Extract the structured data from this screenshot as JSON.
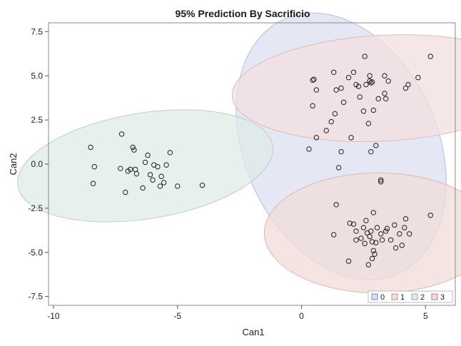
{
  "chart_data": {
    "type": "scatter",
    "title": "95% Prediction By Sacrificio",
    "xlabel": "Can1",
    "ylabel": "Can2",
    "xlim": [
      -10.2,
      6.2
    ],
    "ylim": [
      -8.0,
      8.0
    ],
    "x_ticks": [
      -10,
      -5,
      0,
      5
    ],
    "x_tick_labels": [
      "-10",
      "-5",
      "0",
      "5"
    ],
    "y_ticks": [
      7.5,
      5.0,
      2.5,
      0.0,
      -2.5,
      -5.0,
      -7.5
    ],
    "y_tick_labels": [
      "7.5",
      "5.0",
      "2.5",
      "0.0",
      "-2.5",
      "-5.0",
      "-7.5"
    ],
    "grid": false,
    "legend_position": "bottom-right",
    "legend": [
      {
        "label": "0",
        "color": "#7f86c8"
      },
      {
        "label": "1",
        "color": "#c98e8e"
      },
      {
        "label": "2",
        "color": "#8fb2a3"
      },
      {
        "label": "3",
        "color": "#b08080"
      }
    ],
    "ellipses": [
      {
        "name": "0",
        "cx": 1.6,
        "cy": 1.0,
        "rx": 3.9,
        "ry": 7.9,
        "angle": -24,
        "fill": "#dcdff1",
        "stroke": "#b7bde3"
      },
      {
        "name": "1",
        "cx": 3.3,
        "cy": 4.3,
        "rx": 6.1,
        "ry": 3.0,
        "angle": -3,
        "fill": "#f2dfdd",
        "stroke": "#dcbcb8"
      },
      {
        "name": "2",
        "cx": -6.3,
        "cy": -0.1,
        "rx": 5.2,
        "ry": 3.0,
        "angle": -9,
        "fill": "#dfebe5",
        "stroke": "#b9d1c5"
      },
      {
        "name": "3",
        "cx": 3.1,
        "cy": -3.9,
        "rx": 4.6,
        "ry": 3.4,
        "angle": 0,
        "fill": "#f0dcd8",
        "stroke": "#d9b8b1"
      }
    ],
    "series": [
      {
        "name": "0",
        "points": [
          [
            0.3,
            0.85
          ],
          [
            0.6,
            1.5
          ],
          [
            1.0,
            1.9
          ],
          [
            1.2,
            2.4
          ],
          [
            1.35,
            2.85
          ],
          [
            1.5,
            -0.2
          ],
          [
            1.6,
            0.7
          ],
          [
            2.0,
            1.5
          ],
          [
            2.8,
            0.7
          ],
          [
            3.0,
            1.05
          ],
          [
            3.2,
            -0.9
          ],
          [
            1.4,
            -2.3
          ]
        ]
      },
      {
        "name": "1",
        "points": [
          [
            0.45,
            4.75
          ],
          [
            0.5,
            4.8
          ],
          [
            0.6,
            4.2
          ],
          [
            0.45,
            3.3
          ],
          [
            1.3,
            5.2
          ],
          [
            1.4,
            4.2
          ],
          [
            1.6,
            4.3
          ],
          [
            1.7,
            3.5
          ],
          [
            1.9,
            4.9
          ],
          [
            2.1,
            5.2
          ],
          [
            2.2,
            4.5
          ],
          [
            2.3,
            4.4
          ],
          [
            2.35,
            3.8
          ],
          [
            2.5,
            3.0
          ],
          [
            2.55,
            6.1
          ],
          [
            2.6,
            4.5
          ],
          [
            2.75,
            5.0
          ],
          [
            2.8,
            4.6
          ],
          [
            2.75,
            4.7
          ],
          [
            2.85,
            4.65
          ],
          [
            2.7,
            2.3
          ],
          [
            2.9,
            3.05
          ],
          [
            3.1,
            3.7
          ],
          [
            3.35,
            4.0
          ],
          [
            3.4,
            3.7
          ],
          [
            3.35,
            5.0
          ],
          [
            3.5,
            4.7
          ],
          [
            4.2,
            4.3
          ],
          [
            4.3,
            4.5
          ],
          [
            4.7,
            4.9
          ],
          [
            5.2,
            6.1
          ]
        ]
      },
      {
        "name": "2",
        "points": [
          [
            -8.5,
            0.95
          ],
          [
            -8.35,
            -0.15
          ],
          [
            -8.4,
            -1.1
          ],
          [
            -7.25,
            1.7
          ],
          [
            -7.3,
            -0.25
          ],
          [
            -7.1,
            -1.6
          ],
          [
            -7.0,
            -0.4
          ],
          [
            -6.9,
            -0.3
          ],
          [
            -6.8,
            0.95
          ],
          [
            -6.75,
            0.8
          ],
          [
            -6.7,
            -0.3
          ],
          [
            -6.65,
            -0.55
          ],
          [
            -6.4,
            -1.35
          ],
          [
            -6.3,
            0.1
          ],
          [
            -6.2,
            0.5
          ],
          [
            -6.1,
            -0.6
          ],
          [
            -6.0,
            -0.9
          ],
          [
            -5.95,
            -0.05
          ],
          [
            -5.8,
            -0.15
          ],
          [
            -5.7,
            -1.25
          ],
          [
            -5.65,
            -0.7
          ],
          [
            -5.55,
            -1.05
          ],
          [
            -5.45,
            -0.05
          ],
          [
            -5.3,
            0.65
          ],
          [
            -5.0,
            -1.25
          ],
          [
            -4.0,
            -1.2
          ]
        ]
      },
      {
        "name": "3",
        "points": [
          [
            1.3,
            -4.0
          ],
          [
            1.9,
            -5.5
          ],
          [
            1.95,
            -3.35
          ],
          [
            2.1,
            -3.4
          ],
          [
            2.2,
            -3.8
          ],
          [
            2.2,
            -4.3
          ],
          [
            2.4,
            -4.2
          ],
          [
            2.5,
            -3.6
          ],
          [
            2.55,
            -4.5
          ],
          [
            2.6,
            -3.2
          ],
          [
            2.65,
            -3.9
          ],
          [
            2.7,
            -5.7
          ],
          [
            2.75,
            -4.1
          ],
          [
            2.8,
            -3.8
          ],
          [
            2.85,
            -4.4
          ],
          [
            2.85,
            -5.35
          ],
          [
            2.9,
            -4.9
          ],
          [
            2.9,
            -2.75
          ],
          [
            2.95,
            -5.1
          ],
          [
            3.0,
            -4.45
          ],
          [
            3.05,
            -3.6
          ],
          [
            3.2,
            -3.95
          ],
          [
            3.25,
            -4.3
          ],
          [
            3.4,
            -3.8
          ],
          [
            3.45,
            -3.65
          ],
          [
            3.6,
            -4.3
          ],
          [
            3.75,
            -3.45
          ],
          [
            3.8,
            -4.75
          ],
          [
            3.95,
            -3.95
          ],
          [
            4.05,
            -4.6
          ],
          [
            4.15,
            -3.6
          ],
          [
            4.2,
            -3.1
          ],
          [
            4.35,
            -3.95
          ],
          [
            5.2,
            -2.9
          ],
          [
            3.2,
            -1.0
          ]
        ]
      }
    ]
  }
}
